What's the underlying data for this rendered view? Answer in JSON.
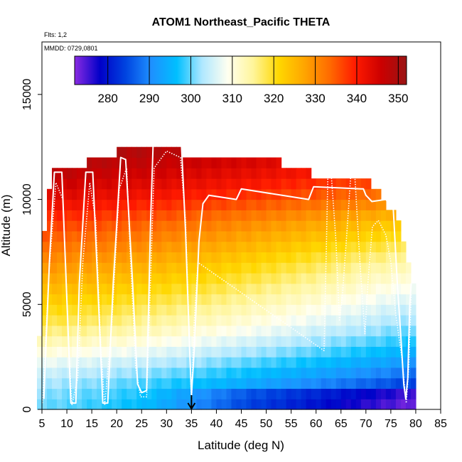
{
  "chart_data": {
    "type": "heatmap",
    "title": "ATOM1 Northeast_Pacific THETA",
    "subtitle_flights": "Flts: 1,2",
    "subtitle_dates": "MMDD: 0729,0801",
    "xlabel": "Latitude (deg N)",
    "ylabel": "Altitude (m)",
    "xlim": [
      5,
      85
    ],
    "ylim": [
      0,
      17500
    ],
    "x_ticks": [
      5,
      10,
      15,
      20,
      25,
      30,
      35,
      40,
      45,
      50,
      55,
      60,
      65,
      70,
      75,
      80,
      85
    ],
    "y_ticks": [
      0,
      5000,
      10000,
      15000
    ],
    "colorbar": {
      "min": 272,
      "max": 352,
      "ticks": [
        280,
        290,
        300,
        310,
        320,
        330,
        340,
        350
      ],
      "colors": [
        "#8a2be2",
        "#0000c8",
        "#0044e0",
        "#1e90ff",
        "#00bfff",
        "#b0e8ff",
        "#fffff0",
        "#fff59a",
        "#ffd700",
        "#ffa500",
        "#ff6a00",
        "#ff1a00",
        "#cc0000",
        "#991414"
      ]
    },
    "field": {
      "lat_min": 4,
      "lat_max": 80,
      "alt_step_m": 500,
      "ceiling_m": [
        {
          "lat": 4,
          "alt": 0
        },
        {
          "lat": 5,
          "alt": 7000
        },
        {
          "lat": 6,
          "alt": 10000
        },
        {
          "lat": 7,
          "alt": 11500
        },
        {
          "lat": 14,
          "alt": 12000
        },
        {
          "lat": 26,
          "alt": 13000
        },
        {
          "lat": 33,
          "alt": 12500
        },
        {
          "lat": 53,
          "alt": 12000
        },
        {
          "lat": 59,
          "alt": 11500
        },
        {
          "lat": 71,
          "alt": 11000
        },
        {
          "lat": 73,
          "alt": 10500
        },
        {
          "lat": 77,
          "alt": 9000
        },
        {
          "lat": 78.5,
          "alt": 7000
        },
        {
          "lat": 79,
          "alt": 6000
        },
        {
          "lat": 80,
          "alt": 6000
        }
      ],
      "theta_profile": [
        {
          "alt": 0,
          "theta_south": 300,
          "theta_north": 278
        },
        {
          "alt": 1000,
          "theta_south": 302,
          "theta_north": 282
        },
        {
          "alt": 2000,
          "theta_south": 306,
          "theta_north": 290
        },
        {
          "alt": 3000,
          "theta_south": 312,
          "theta_north": 296
        },
        {
          "alt": 4000,
          "theta_south": 318,
          "theta_north": 301
        },
        {
          "alt": 5000,
          "theta_south": 322,
          "theta_north": 305
        },
        {
          "alt": 6000,
          "theta_south": 326,
          "theta_north": 309
        },
        {
          "alt": 7000,
          "theta_south": 330,
          "theta_north": 313
        },
        {
          "alt": 8000,
          "theta_south": 334,
          "theta_north": 318
        },
        {
          "alt": 9000,
          "theta_south": 338,
          "theta_north": 323
        },
        {
          "alt": 10000,
          "theta_south": 343,
          "theta_north": 330
        },
        {
          "alt": 11000,
          "theta_south": 347,
          "theta_north": 336
        },
        {
          "alt": 12000,
          "theta_south": 350,
          "theta_north": 340
        },
        {
          "alt": 13000,
          "theta_south": 352,
          "theta_north": 344
        }
      ]
    },
    "flight_track_solid": [
      [
        5.4,
        500
      ],
      [
        5.8,
        3000
      ],
      [
        6.5,
        7000
      ],
      [
        7.5,
        11300
      ],
      [
        9.0,
        11300
      ],
      [
        10.2,
        4000
      ],
      [
        10.8,
        300
      ],
      [
        11.8,
        300
      ],
      [
        12.5,
        6000
      ],
      [
        13.8,
        11300
      ],
      [
        15.2,
        11300
      ],
      [
        16.2,
        6000
      ],
      [
        17.2,
        300
      ],
      [
        18.2,
        300
      ],
      [
        19.3,
        6000
      ],
      [
        20.8,
        12000
      ],
      [
        21.8,
        11900
      ],
      [
        23.2,
        6000
      ],
      [
        24.2,
        1200
      ],
      [
        25.0,
        800
      ],
      [
        26.0,
        900
      ],
      [
        26.8,
        9000
      ],
      [
        27.3,
        12600
      ],
      [
        33.0,
        12600
      ],
      [
        33.8,
        8500
      ],
      [
        34.6,
        3000
      ],
      [
        35.0,
        700
      ],
      [
        35.6,
        3000
      ],
      [
        36.5,
        8000
      ],
      [
        37.3,
        9800
      ],
      [
        38.5,
        10200
      ],
      [
        44.0,
        10000
      ],
      [
        45.0,
        10500
      ],
      [
        58.5,
        10000
      ],
      [
        59.5,
        10600
      ],
      [
        69.5,
        10500
      ],
      [
        70.0,
        10200
      ],
      [
        71.2,
        9900
      ],
      [
        74.0,
        10000
      ],
      [
        75.5,
        9500
      ],
      [
        76.3,
        6000
      ],
      [
        77.0,
        3500
      ],
      [
        77.6,
        1200
      ],
      [
        78.0,
        500
      ],
      [
        78.4,
        1500
      ],
      [
        78.8,
        5000
      ],
      [
        79.1,
        6000
      ]
    ],
    "flight_track_dotted": [
      [
        5.1,
        300
      ],
      [
        5.6,
        2500
      ],
      [
        6.4,
        6500
      ],
      [
        7.8,
        10800
      ],
      [
        9.2,
        10000
      ],
      [
        10.4,
        3000
      ],
      [
        11.0,
        200
      ],
      [
        12.2,
        1500
      ],
      [
        13.2,
        7000
      ],
      [
        14.6,
        10800
      ],
      [
        15.8,
        9000
      ],
      [
        16.8,
        3000
      ],
      [
        17.6,
        200
      ],
      [
        19.0,
        4000
      ],
      [
        20.5,
        10500
      ],
      [
        22.0,
        11500
      ],
      [
        22.8,
        7000
      ],
      [
        23.8,
        2000
      ],
      [
        24.8,
        600
      ],
      [
        26.0,
        600
      ],
      [
        26.5,
        4000
      ],
      [
        27.5,
        11500
      ],
      [
        30.0,
        12300
      ],
      [
        32.8,
        12000
      ],
      [
        33.8,
        9000
      ],
      [
        34.7,
        2500
      ],
      [
        35.0,
        300
      ],
      [
        35.5,
        4000
      ],
      [
        36.3,
        7000
      ],
      [
        61.6,
        2800
      ],
      [
        62.0,
        7000
      ],
      [
        62.4,
        11500
      ],
      [
        63.1,
        11000
      ],
      [
        64.0,
        8000
      ],
      [
        64.7,
        4200
      ],
      [
        65.3,
        5500
      ],
      [
        66.2,
        8500
      ],
      [
        67.0,
        11300
      ],
      [
        67.8,
        11000
      ],
      [
        68.8,
        7000
      ],
      [
        69.8,
        3600
      ],
      [
        70.4,
        6000
      ],
      [
        71.3,
        8700
      ],
      [
        72.5,
        9000
      ],
      [
        74.0,
        8300
      ],
      [
        75.0,
        7000
      ],
      [
        76.0,
        4500
      ],
      [
        77.2,
        2500
      ],
      [
        77.8,
        1000
      ],
      [
        78.1,
        300
      ],
      [
        78.6,
        2000
      ],
      [
        79.1,
        5500
      ]
    ],
    "marker": {
      "lat": 35,
      "alt_top": 600,
      "alt_bottom": 0
    }
  }
}
